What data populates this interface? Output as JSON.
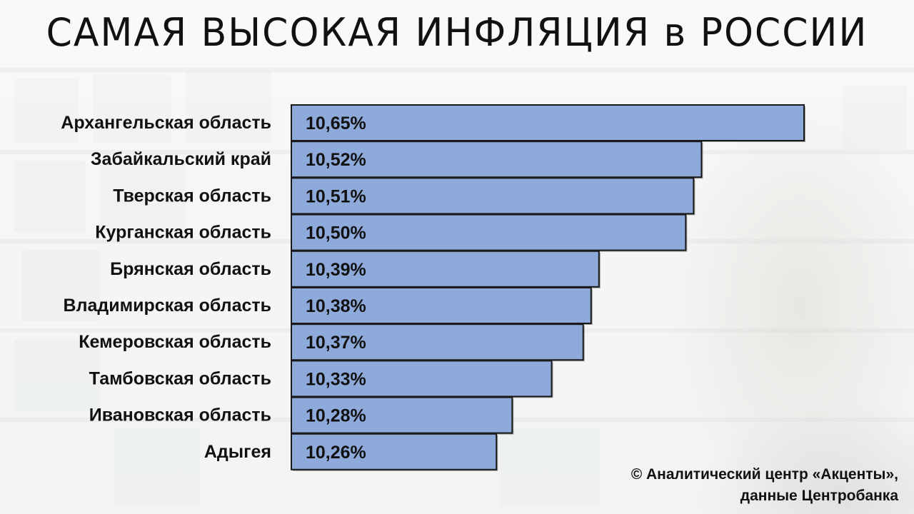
{
  "chart_data": {
    "type": "bar",
    "orientation": "horizontal",
    "title": "САМАЯ  ВЫСОКАЯ  ИНФЛЯЦИЯ  в  РОССИИ",
    "categories": [
      "Архангельская область",
      "Забайкальский край",
      "Тверская область",
      "Курганская область",
      "Брянская область",
      "Владимирская область",
      "Кемеровская область",
      "Тамбовская область",
      "Ивановская область",
      "Адыгея"
    ],
    "values": [
      10.65,
      10.52,
      10.51,
      10.5,
      10.39,
      10.38,
      10.37,
      10.33,
      10.28,
      10.26
    ],
    "value_labels": [
      "10,65%",
      "10,52%",
      "10,51%",
      "10,50%",
      "10,39%",
      "10,38%",
      "10,37%",
      "10,33%",
      "10,28%",
      "10,26%"
    ],
    "xlim": [
      10.0,
      10.65
    ],
    "grid": false,
    "bar_color": "#8eaadb"
  },
  "source": {
    "line1": "©  Аналитический центр «Акценты»,",
    "line2": "данные Центробанка"
  }
}
